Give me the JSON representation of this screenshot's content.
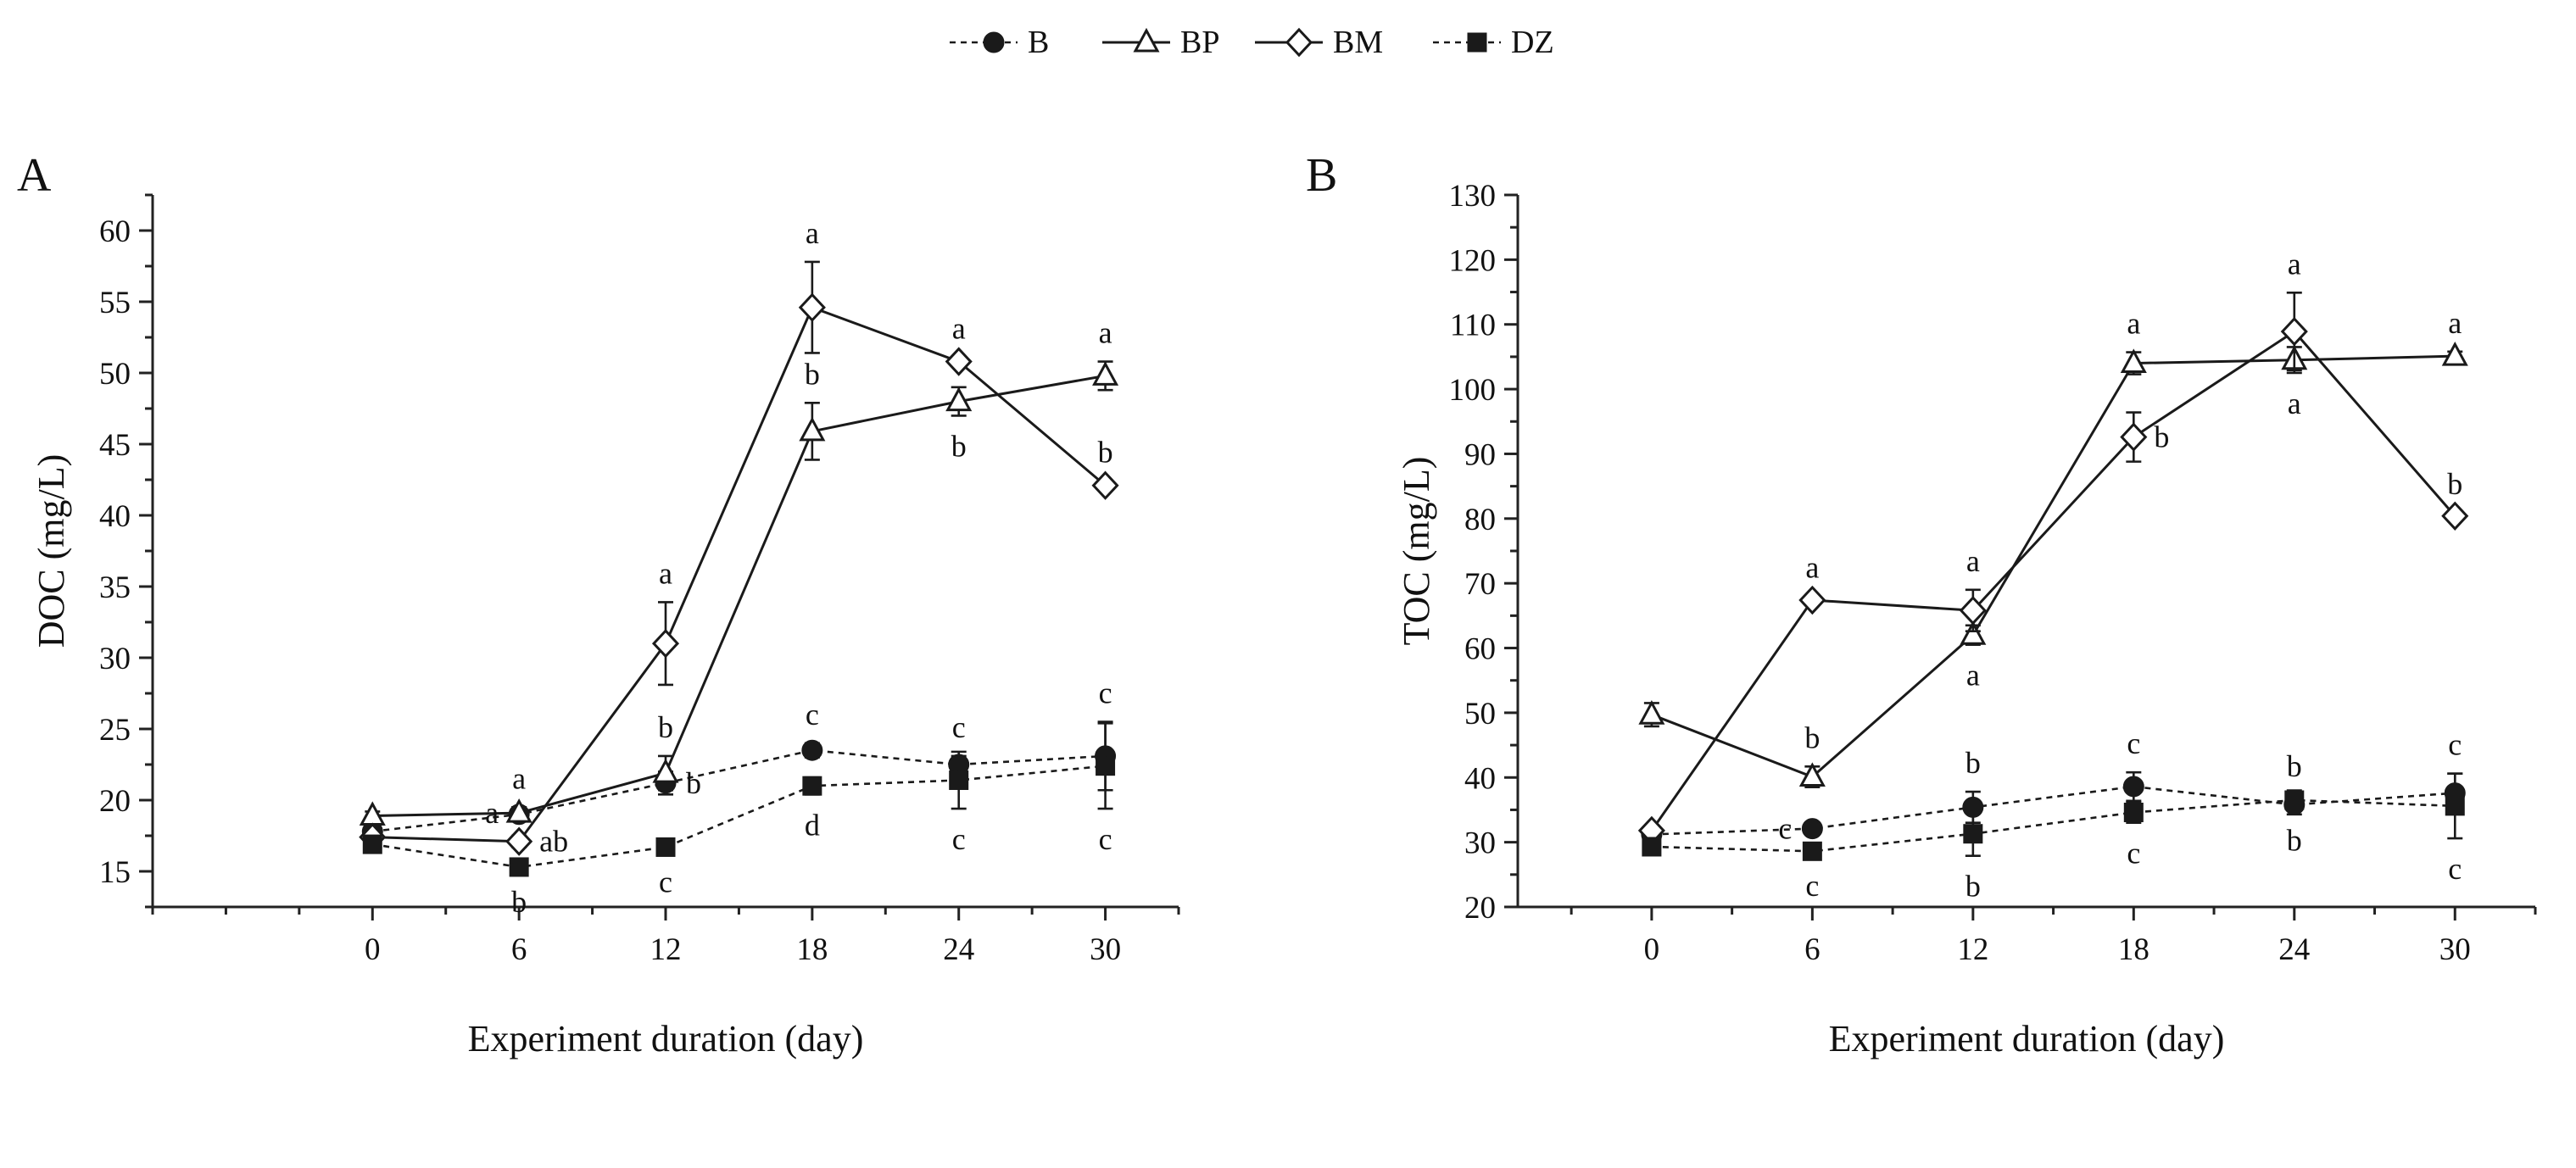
{
  "legend": {
    "items": [
      {
        "key": "B",
        "label": "B",
        "marker": "circle",
        "fill": "#1a1a1a",
        "dash": true
      },
      {
        "key": "BP",
        "label": "BP",
        "marker": "triangle",
        "fill": "#ffffff",
        "dash": false
      },
      {
        "key": "BM",
        "label": "BM",
        "marker": "diamond",
        "fill": "#ffffff",
        "dash": false
      },
      {
        "key": "DZ",
        "label": "DZ",
        "marker": "square",
        "fill": "#1a1a1a",
        "dash": true
      }
    ]
  },
  "chart_data": [
    {
      "type": "line",
      "panel_label": "A",
      "title": "",
      "xlabel": "Experiment duration (day)",
      "ylabel": "DOC (mg/L)",
      "x": [
        0,
        6,
        12,
        18,
        24,
        30
      ],
      "xlim": [
        -9,
        33
      ],
      "ylim": [
        12.5,
        62.5
      ],
      "xticks": [
        0,
        6,
        12,
        18,
        24,
        30
      ],
      "yticks": [
        15,
        20,
        25,
        30,
        35,
        40,
        45,
        50,
        55,
        60
      ],
      "series": [
        {
          "name": "B",
          "values": [
            17.8,
            19.0,
            21.2,
            23.5,
            22.5,
            23.1
          ],
          "errors": [
            0.4,
            0.5,
            0.8,
            0.5,
            0.6,
            2.4
          ],
          "letters": [
            null,
            "a",
            "b",
            "c",
            "c",
            "c"
          ],
          "letter_pos": [
            null,
            "above",
            "right",
            "above",
            "above",
            "above"
          ]
        },
        {
          "name": "BP",
          "values": [
            18.9,
            19.1,
            21.9,
            45.9,
            48.0,
            49.8
          ],
          "errors": [
            0.3,
            0.4,
            1.2,
            2.0,
            1.0,
            1.0
          ],
          "letters": [
            null,
            "a",
            "b",
            "b",
            "b",
            "a"
          ],
          "letter_pos": [
            null,
            "left",
            "above",
            "above",
            "below",
            "above"
          ]
        },
        {
          "name": "BM",
          "values": [
            17.4,
            17.1,
            31.0,
            54.6,
            50.8,
            42.1
          ],
          "errors": [
            0.4,
            0.4,
            2.9,
            3.2,
            0.3,
            0.3
          ],
          "letters": [
            null,
            "ab",
            "a",
            "a",
            "a",
            "b"
          ],
          "letter_pos": [
            null,
            "right",
            "above",
            "above",
            "above",
            "above"
          ]
        },
        {
          "name": "DZ",
          "values": [
            16.9,
            15.3,
            16.7,
            21.0,
            21.4,
            22.4
          ],
          "errors": [
            0.3,
            0.3,
            0.3,
            0.6,
            2.0,
            3.0
          ],
          "letters": [
            null,
            "b",
            "c",
            "d",
            "c",
            "c"
          ],
          "letter_pos": [
            null,
            "below",
            "below",
            "below",
            "below",
            "below"
          ]
        }
      ]
    },
    {
      "type": "line",
      "panel_label": "B",
      "title": "",
      "xlabel": "Experiment duration (day)",
      "ylabel": "TOC (mg/L)",
      "x": [
        0,
        6,
        12,
        18,
        24,
        30
      ],
      "xlim": [
        -5,
        33
      ],
      "ylim": [
        20,
        130
      ],
      "xticks": [
        0,
        6,
        12,
        18,
        24,
        30
      ],
      "yticks": [
        20,
        30,
        40,
        50,
        60,
        70,
        80,
        90,
        100,
        110,
        120,
        130
      ],
      "series": [
        {
          "name": "B",
          "values": [
            31.2,
            32.1,
            35.4,
            38.6,
            35.8,
            37.6
          ],
          "errors": [
            0.6,
            0.6,
            2.4,
            2.2,
            1.5,
            3.0
          ],
          "letters": [
            null,
            "c",
            "b",
            "c",
            "b",
            "c"
          ],
          "letter_pos": [
            null,
            "left",
            "above",
            "above",
            "above",
            "above"
          ]
        },
        {
          "name": "BP",
          "values": [
            49.7,
            40.1,
            62.0,
            104.0,
            104.5,
            105.1
          ],
          "errors": [
            1.8,
            1.6,
            1.5,
            1.7,
            2.0,
            0.7
          ],
          "letters": [
            null,
            "b",
            "a",
            "a",
            "a",
            "a"
          ],
          "letter_pos": [
            null,
            "above",
            "below",
            "above",
            "below",
            "above"
          ]
        },
        {
          "name": "BM",
          "values": [
            31.8,
            67.4,
            65.8,
            92.6,
            108.9,
            80.4
          ],
          "errors": [
            0.6,
            0.6,
            3.2,
            3.8,
            6.0,
            0.5
          ],
          "letters": [
            null,
            "a",
            "a",
            "b",
            "a",
            "b"
          ],
          "letter_pos": [
            null,
            "above",
            "above",
            "right",
            "above",
            "above"
          ]
        },
        {
          "name": "DZ",
          "values": [
            29.3,
            28.6,
            31.3,
            34.6,
            36.5,
            35.6
          ],
          "errors": [
            0.6,
            0.6,
            3.4,
            1.6,
            1.5,
            5.0
          ],
          "letters": [
            null,
            "c",
            "b",
            "c",
            "b",
            "c"
          ],
          "letter_pos": [
            null,
            "below",
            "below",
            "below",
            "below",
            "below"
          ]
        }
      ]
    }
  ]
}
